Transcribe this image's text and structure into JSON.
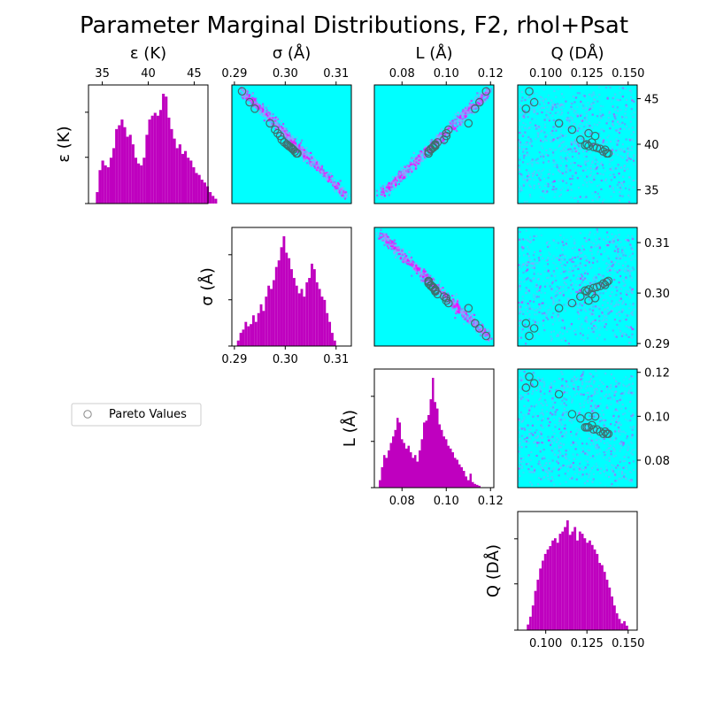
{
  "chart_data": {
    "type": "corner",
    "title": "Parameter Marginal Distributions, F2, rhol+Psat",
    "legend": {
      "entries": [
        "Pareto Values"
      ],
      "position": "left-middle"
    },
    "colors": {
      "histogram": "#bf00bf",
      "density_background": "#00ffff",
      "density_high": "#ff00ff",
      "pareto_marker_edge": "#3f6f6f"
    },
    "parameters": [
      {
        "key": "eps",
        "label": "ε (K)",
        "range": [
          33.5,
          46.5
        ],
        "ticks": [
          35,
          40,
          45
        ],
        "tick_labels": [
          "35",
          "40",
          "45"
        ]
      },
      {
        "key": "sigma",
        "label": "σ (Å)",
        "range": [
          0.2895,
          0.313
        ],
        "ticks": [
          0.29,
          0.3,
          0.31
        ],
        "tick_labels": [
          "0.29",
          "0.30",
          "0.31"
        ]
      },
      {
        "key": "L",
        "label": "L (Å)",
        "range": [
          0.0675,
          0.1215
        ],
        "ticks": [
          0.08,
          0.1,
          0.12
        ],
        "tick_labels": [
          "0.08",
          "0.10",
          "0.12"
        ]
      },
      {
        "key": "Q",
        "label": "Q (DÅ)",
        "range": [
          0.083,
          0.1555
        ],
        "ticks": [
          0.1,
          0.125,
          0.15
        ],
        "tick_labels": [
          "0.100",
          "0.125",
          "0.150"
        ]
      }
    ],
    "histograms": {
      "eps": {
        "x_start": 34.3,
        "bin_width": 0.3,
        "counts": [
          12,
          35,
          45,
          40,
          38,
          48,
          58,
          78,
          82,
          88,
          80,
          70,
          72,
          62,
          48,
          42,
          40,
          48,
          72,
          88,
          92,
          95,
          92,
          98,
          115,
          112,
          90,
          78,
          68,
          58,
          62,
          52,
          55,
          48,
          45,
          38,
          32,
          30,
          25,
          22,
          18,
          12,
          8,
          5
        ]
      },
      "sigma": {
        "x_start": 0.2905,
        "bin_width": 0.0005,
        "counts": [
          5,
          12,
          15,
          22,
          18,
          20,
          28,
          22,
          30,
          38,
          32,
          45,
          55,
          52,
          60,
          72,
          78,
          90,
          100,
          85,
          80,
          70,
          62,
          55,
          48,
          52,
          45,
          58,
          62,
          75,
          70,
          58,
          52,
          45,
          42,
          30,
          22,
          12,
          5
        ]
      },
      "L": {
        "x_start": 0.0695,
        "bin_width": 0.001,
        "counts": [
          8,
          22,
          35,
          32,
          40,
          48,
          55,
          62,
          75,
          70,
          52,
          48,
          42,
          45,
          38,
          32,
          35,
          28,
          40,
          52,
          70,
          72,
          78,
          95,
          118,
          92,
          85,
          68,
          62,
          55,
          52,
          45,
          42,
          38,
          32,
          30,
          25,
          22,
          18,
          12,
          8,
          15,
          6,
          4,
          3,
          2
        ]
      },
      "Q": {
        "x_start": 0.0885,
        "bin_width": 0.0015,
        "counts": [
          5,
          12,
          22,
          35,
          45,
          55,
          62,
          68,
          72,
          75,
          80,
          82,
          78,
          86,
          88,
          92,
          98,
          85,
          88,
          92,
          80,
          88,
          86,
          82,
          78,
          80,
          76,
          72,
          68,
          60,
          58,
          52,
          45,
          38,
          30,
          22,
          15,
          10,
          6,
          8,
          4
        ]
      }
    },
    "pareto_points": [
      {
        "eps": 45.8,
        "sigma": 0.2915,
        "L": 0.118,
        "Q": 0.09
      },
      {
        "eps": 44.6,
        "sigma": 0.293,
        "L": 0.115,
        "Q": 0.093
      },
      {
        "eps": 43.9,
        "sigma": 0.294,
        "L": 0.113,
        "Q": 0.088
      },
      {
        "eps": 42.3,
        "sigma": 0.297,
        "L": 0.11,
        "Q": 0.108
      },
      {
        "eps": 41.6,
        "sigma": 0.298,
        "L": 0.101,
        "Q": 0.116
      },
      {
        "eps": 41.2,
        "sigma": 0.2985,
        "L": 0.1,
        "Q": 0.126
      },
      {
        "eps": 40.9,
        "sigma": 0.299,
        "L": 0.1,
        "Q": 0.13
      },
      {
        "eps": 40.5,
        "sigma": 0.2993,
        "L": 0.099,
        "Q": 0.121
      },
      {
        "eps": 40.2,
        "sigma": 0.2998,
        "L": 0.096,
        "Q": 0.128
      },
      {
        "eps": 40.0,
        "sigma": 0.3003,
        "L": 0.095,
        "Q": 0.125
      },
      {
        "eps": 39.9,
        "sigma": 0.3005,
        "L": 0.095,
        "Q": 0.124
      },
      {
        "eps": 39.8,
        "sigma": 0.3007,
        "L": 0.095,
        "Q": 0.126
      },
      {
        "eps": 39.7,
        "sigma": 0.301,
        "L": 0.094,
        "Q": 0.129
      },
      {
        "eps": 39.6,
        "sigma": 0.3012,
        "L": 0.094,
        "Q": 0.131
      },
      {
        "eps": 39.5,
        "sigma": 0.3014,
        "L": 0.093,
        "Q": 0.133
      },
      {
        "eps": 39.4,
        "sigma": 0.3016,
        "L": 0.093,
        "Q": 0.136
      },
      {
        "eps": 39.2,
        "sigma": 0.3019,
        "L": 0.092,
        "Q": 0.135
      },
      {
        "eps": 39.0,
        "sigma": 0.3022,
        "L": 0.092,
        "Q": 0.137
      },
      {
        "eps": 39.0,
        "sigma": 0.3024,
        "L": 0.092,
        "Q": 0.138
      }
    ]
  }
}
